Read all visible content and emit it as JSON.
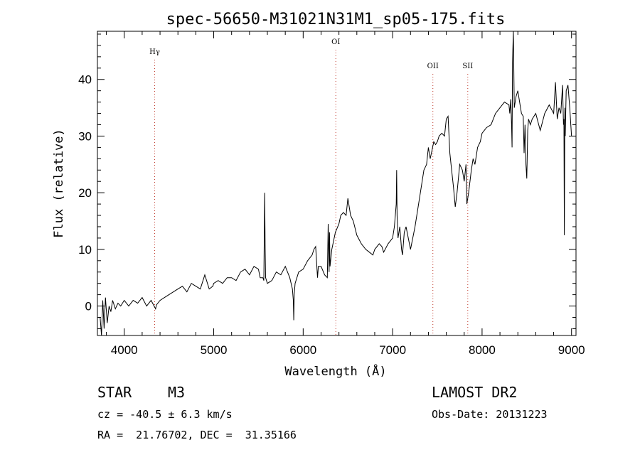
{
  "chart_data": {
    "type": "line",
    "title": "spec-56650-M31021N31M1_sp05-175.fits",
    "xlabel": "Wavelength (Å)",
    "ylabel": "Flux (relative)",
    "xlim": [
      3700,
      9050
    ],
    "ylim": [
      -5.2,
      48.5
    ],
    "xticks": [
      4000,
      5000,
      6000,
      7000,
      8000,
      9000
    ],
    "xtick_labels": [
      "4000",
      "5000",
      "6000",
      "7000",
      "8000",
      "9000"
    ],
    "yticks": [
      0,
      10,
      20,
      30,
      40
    ],
    "ytick_labels": [
      "0",
      "10",
      "20",
      "30",
      "40"
    ],
    "grid": false,
    "lines": [
      {
        "label": "Hγ",
        "x": 4340
      },
      {
        "label": "OI",
        "x": 6365
      },
      {
        "label": "OII",
        "x": 7450
      },
      {
        "label": "SII",
        "x": 7840
      }
    ],
    "series": [
      {
        "x": [
          3730,
          3745,
          3760,
          3775,
          3790,
          3810,
          3830,
          3850,
          3870,
          3900,
          3930,
          3960,
          4000,
          4050,
          4100,
          4150,
          4200,
          4250,
          4300,
          4350,
          4360,
          4400,
          4450,
          4500,
          4550,
          4600,
          4650,
          4700,
          4750,
          4800,
          4850,
          4900,
          4950,
          4990,
          5000,
          5050,
          5100,
          5150,
          5200,
          5250,
          5300,
          5350,
          5400,
          5450,
          5500,
          5520,
          5550,
          5560,
          5565,
          5570,
          5575,
          5580,
          5600,
          5650,
          5700,
          5750,
          5800,
          5850,
          5880,
          5890,
          5895,
          5900,
          5910,
          5950,
          6000,
          6050,
          6100,
          6120,
          6140,
          6160,
          6170,
          6200,
          6240,
          6270,
          6280,
          6290,
          6295,
          6300,
          6320,
          6360,
          6400,
          6420,
          6450,
          6480,
          6500,
          6530,
          6560,
          6600,
          6650,
          6700,
          6740,
          6780,
          6800,
          6850,
          6880,
          6900,
          6950,
          7000,
          7020,
          7040,
          7045,
          7050,
          7060,
          7080,
          7100,
          7110,
          7130,
          7150,
          7200,
          7250,
          7300,
          7350,
          7380,
          7400,
          7420,
          7440,
          7460,
          7480,
          7500,
          7520,
          7550,
          7580,
          7600,
          7620,
          7640,
          7660,
          7680,
          7700,
          7720,
          7750,
          7780,
          7800,
          7820,
          7830,
          7850,
          7880,
          7900,
          7920,
          7950,
          7980,
          8000,
          8050,
          8100,
          8150,
          8200,
          8250,
          8300,
          8310,
          8320,
          8330,
          8335,
          8340,
          8350,
          8360,
          8380,
          8400,
          8420,
          8440,
          8460,
          8470,
          8480,
          8490,
          8500,
          8510,
          8520,
          8540,
          8560,
          8600,
          8650,
          8700,
          8750,
          8800,
          8820,
          8840,
          8860,
          8880,
          8900,
          8910,
          8915,
          8920,
          8925,
          8930,
          8940,
          8960,
          8980,
          9000
        ],
        "values": [
          -2,
          -5.5,
          1,
          -4,
          1.5,
          -3,
          0,
          -1,
          1,
          -0.5,
          0.5,
          0,
          1,
          0,
          1,
          0.5,
          1.5,
          0,
          1,
          -0.5,
          0.2,
          1,
          1.5,
          2,
          2.5,
          3,
          3.5,
          2.5,
          4,
          3.5,
          3,
          5.5,
          3,
          3.5,
          4,
          4.5,
          4,
          5,
          5,
          4.5,
          6,
          6.5,
          5.5,
          7,
          6.5,
          5,
          5,
          4.5,
          12,
          20,
          10,
          5,
          4,
          4.5,
          6,
          5.5,
          7,
          5,
          3,
          1,
          -2.5,
          2,
          4,
          6,
          6.5,
          8,
          9,
          10,
          10.5,
          5,
          7,
          7,
          5.5,
          5,
          14.5,
          6,
          13,
          7,
          10,
          13,
          14.5,
          16,
          16.5,
          16,
          19,
          16,
          15,
          12.5,
          11,
          10,
          9.5,
          9,
          10,
          11,
          10.5,
          9.5,
          11,
          12,
          14,
          18,
          24,
          16,
          12,
          14,
          10,
          9,
          13,
          14,
          10,
          14,
          19,
          24,
          25,
          28,
          26,
          27.5,
          29,
          28.5,
          29,
          30,
          30.5,
          30,
          33,
          33.5,
          27,
          24,
          21,
          17.5,
          20,
          25,
          24,
          22,
          25,
          18,
          20,
          24,
          26,
          25,
          28,
          29,
          30.5,
          31.5,
          32,
          34,
          35,
          36,
          35.5,
          34,
          36.5,
          32,
          28,
          43,
          48.5,
          35,
          37,
          38,
          36,
          34,
          33.5,
          27,
          32,
          25,
          22.5,
          31,
          33,
          32,
          33,
          34,
          31,
          34,
          35.5,
          34,
          39.5,
          33,
          35,
          34,
          39,
          32,
          33,
          12.5,
          35,
          30,
          38,
          39,
          35,
          30
        ]
      }
    ]
  },
  "info": {
    "object_class": "STAR",
    "subclass": "M3",
    "survey": "LAMOST DR2",
    "cz": "cz = -40.5 ± 6.3 km/s",
    "obs_date": "Obs-Date: 20131223",
    "coords": "RA =  21.76702, DEC =  31.35166"
  }
}
